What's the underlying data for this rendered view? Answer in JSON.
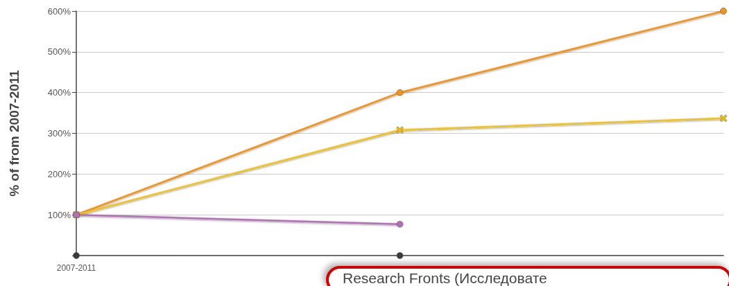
{
  "chart_data": {
    "type": "line",
    "ylabel": "% of from 2007-2011",
    "categories": [
      "2007-2011",
      null,
      null
    ],
    "series": [
      {
        "color": "#f39318",
        "marker": "circle",
        "values": [
          100,
          400,
          600
        ]
      },
      {
        "color": "#f2c21b",
        "marker": "cross",
        "values": [
          100,
          308,
          337
        ]
      },
      {
        "color": "#b46fb8",
        "marker": "circle",
        "values": [
          100,
          77,
          null
        ]
      },
      {
        "color": "#3a3a3a",
        "marker": "circle",
        "values": [
          0,
          0,
          null
        ]
      }
    ],
    "ylim": [
      0,
      600
    ],
    "yticks": [
      {
        "value": 0,
        "label": null
      },
      {
        "value": 100,
        "label": "100%"
      },
      {
        "value": 200,
        "label": "200%"
      },
      {
        "value": 300,
        "label": "300%"
      },
      {
        "value": 400,
        "label": "400%"
      },
      {
        "value": 500,
        "label": "500%"
      },
      {
        "value": 600,
        "label": "600%"
      }
    ],
    "grid": "y",
    "annotations": [
      "Research Fronts (Исследовате"
    ]
  }
}
